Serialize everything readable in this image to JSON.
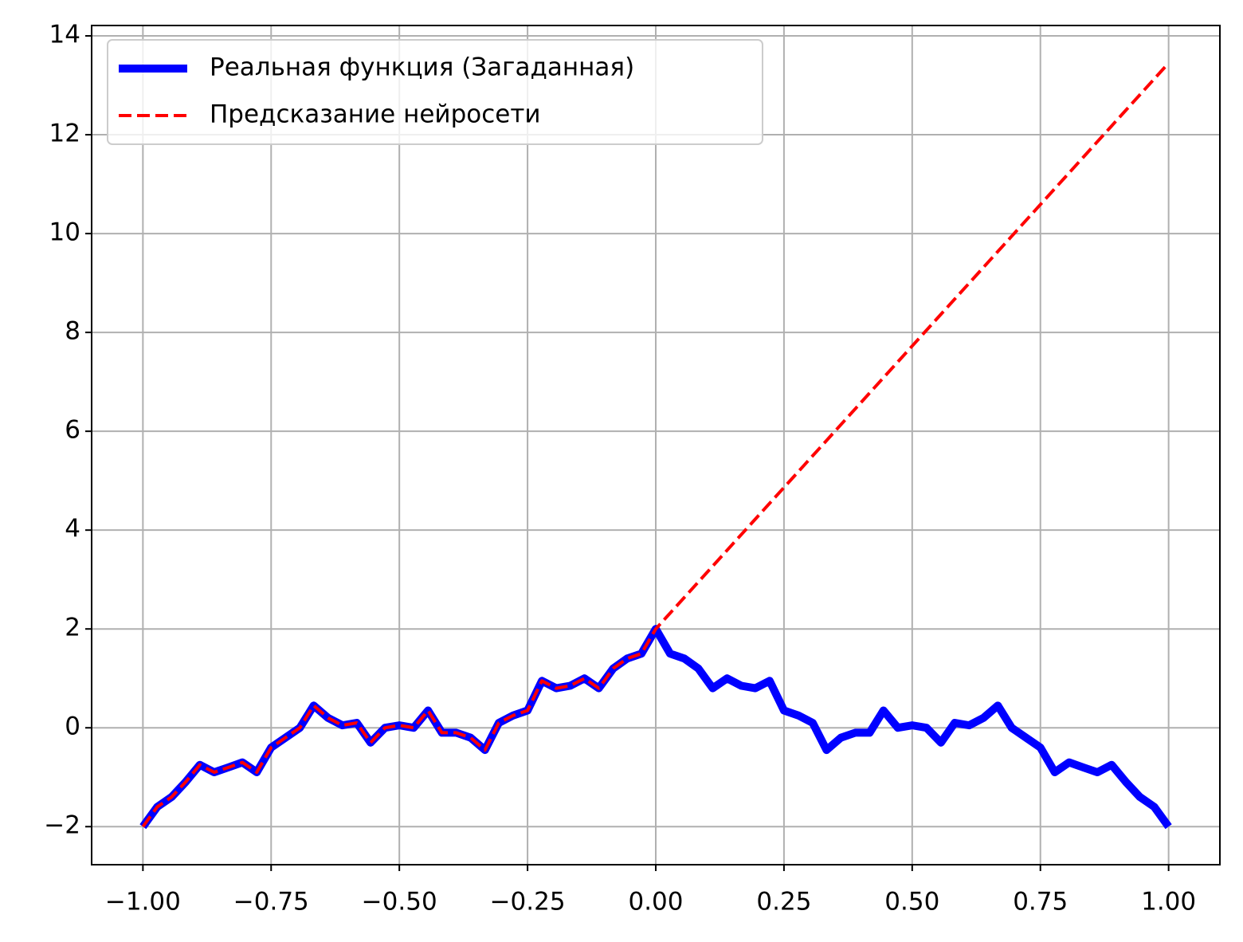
{
  "chart_data": {
    "type": "line",
    "series": [
      {
        "name": "Реальная функция (Загаданная)",
        "color": "#0000ff",
        "dash": false,
        "x": [
          -1,
          -0.972,
          -0.944,
          -0.917,
          -0.889,
          -0.861,
          -0.833,
          -0.806,
          -0.778,
          -0.75,
          -0.722,
          -0.694,
          -0.667,
          -0.639,
          -0.611,
          -0.583,
          -0.556,
          -0.528,
          -0.5,
          -0.472,
          -0.444,
          -0.417,
          -0.389,
          -0.361,
          -0.333,
          -0.306,
          -0.278,
          -0.25,
          -0.222,
          -0.194,
          -0.167,
          -0.139,
          -0.111,
          -0.083,
          -0.056,
          -0.028,
          0,
          0.028,
          0.056,
          0.083,
          0.111,
          0.139,
          0.167,
          0.194,
          0.222,
          0.25,
          0.278,
          0.306,
          0.333,
          0.361,
          0.389,
          0.417,
          0.444,
          0.472,
          0.5,
          0.528,
          0.556,
          0.583,
          0.611,
          0.639,
          0.667,
          0.694,
          0.722,
          0.75,
          0.778,
          0.806,
          0.833,
          0.861,
          0.889,
          0.917,
          0.944,
          0.972,
          1
        ],
        "values": [
          -2.0,
          -1.6,
          -1.4,
          -1.1,
          -0.75,
          -0.9,
          -0.8,
          -0.7,
          -0.9,
          -0.4,
          -0.2,
          0,
          0.45,
          0.2,
          0.05,
          0.1,
          -0.3,
          0,
          0.05,
          0,
          0.35,
          -0.1,
          -0.1,
          -0.2,
          -0.45,
          0.1,
          0.25,
          0.35,
          0.95,
          0.8,
          0.85,
          1.0,
          0.8,
          1.2,
          1.4,
          1.5,
          2.0,
          1.5,
          1.4,
          1.2,
          0.8,
          1.0,
          0.85,
          0.8,
          0.95,
          0.35,
          0.25,
          0.1,
          -0.45,
          -0.2,
          -0.1,
          -0.1,
          0.35,
          0,
          0.05,
          0,
          -0.3,
          0.1,
          0.05,
          0.2,
          0.45,
          0,
          -0.2,
          -0.4,
          -0.9,
          -0.7,
          -0.8,
          -0.9,
          -0.75,
          -1.1,
          -1.4,
          -1.6,
          -2.0
        ]
      },
      {
        "name": "Предсказание нейросети",
        "color": "#ff0000",
        "dash": true,
        "x": [
          -1,
          -0.972,
          -0.944,
          -0.917,
          -0.889,
          -0.861,
          -0.833,
          -0.806,
          -0.778,
          -0.75,
          -0.722,
          -0.694,
          -0.667,
          -0.639,
          -0.611,
          -0.583,
          -0.556,
          -0.528,
          -0.5,
          -0.472,
          -0.444,
          -0.417,
          -0.389,
          -0.361,
          -0.333,
          -0.306,
          -0.278,
          -0.25,
          -0.222,
          -0.194,
          -0.167,
          -0.139,
          -0.111,
          -0.083,
          -0.056,
          -0.028,
          0,
          1
        ],
        "values": [
          -2.0,
          -1.6,
          -1.4,
          -1.1,
          -0.75,
          -0.9,
          -0.8,
          -0.7,
          -0.9,
          -0.4,
          -0.2,
          0,
          0.45,
          0.2,
          0.05,
          0.1,
          -0.3,
          0,
          0.05,
          0,
          0.35,
          -0.1,
          -0.1,
          -0.2,
          -0.45,
          0.1,
          0.25,
          0.35,
          0.95,
          0.8,
          0.85,
          1.0,
          0.8,
          1.2,
          1.4,
          1.5,
          2.0,
          13.45
        ]
      }
    ],
    "xlim": [
      -1.1,
      1.1
    ],
    "ylim": [
      -2.77,
      14.21
    ],
    "xticks": [
      {
        "value": -1,
        "label": "−1.00"
      },
      {
        "value": -0.75,
        "label": "−0.75"
      },
      {
        "value": -0.5,
        "label": "−0.50"
      },
      {
        "value": -0.25,
        "label": "−0.25"
      },
      {
        "value": 0,
        "label": "0.00"
      },
      {
        "value": 0.25,
        "label": "0.25"
      },
      {
        "value": 0.5,
        "label": "0.50"
      },
      {
        "value": 0.75,
        "label": "0.75"
      },
      {
        "value": 1,
        "label": "1.00"
      }
    ],
    "yticks": [
      {
        "value": -2,
        "label": "−2"
      },
      0,
      2,
      4,
      6,
      8,
      10,
      12,
      14
    ],
    "grid": true,
    "legend": "upper-left"
  }
}
